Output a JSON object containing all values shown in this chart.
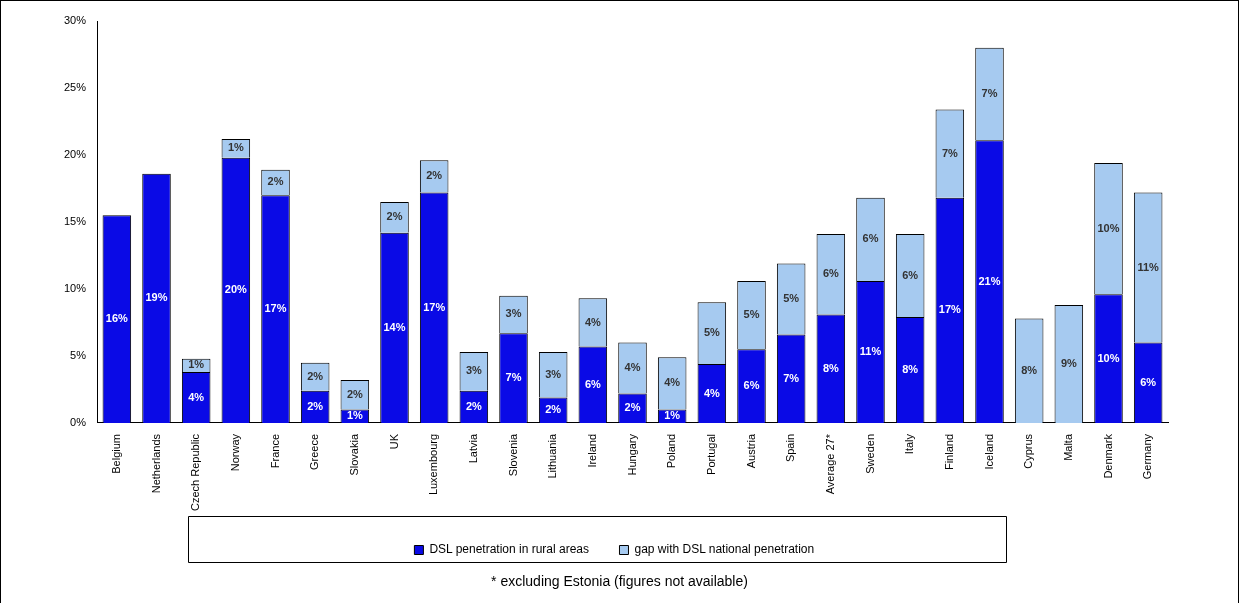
{
  "chart_data": {
    "type": "bar",
    "stacked": true,
    "categories": [
      "Belgium",
      "Netherlands",
      "Czech Republic",
      "Norway",
      "France",
      "Greece",
      "Slovakia",
      "UK",
      "Luxembourg",
      "Latvia",
      "Slovenia",
      "Lithuania",
      "Ireland",
      "Hungary",
      "Poland",
      "Portugal",
      "Austria",
      "Spain",
      "Average 27*",
      "Sweden",
      "Italy",
      "Finland",
      "Iceland",
      "Cyprus",
      "Malta",
      "Denmark",
      "Germany"
    ],
    "series": [
      {
        "name": "DSL penetration in rural areas",
        "color": "#0a0ae6",
        "values": [
          15.5,
          18.6,
          3.8,
          19.8,
          17.0,
          2.4,
          1.0,
          14.2,
          17.2,
          2.4,
          6.7,
          1.9,
          5.7,
          2.2,
          1.0,
          4.4,
          5.5,
          6.6,
          8.1,
          10.6,
          7.9,
          16.8,
          21.1,
          null,
          null,
          9.6,
          6.0
        ],
        "value_labels": [
          "16%",
          "19%",
          "4%",
          "20%",
          "17%",
          "2%",
          "1%",
          "14%",
          "17%",
          "2%",
          "7%",
          "2%",
          "6%",
          "2%",
          "1%",
          "4%",
          "6%",
          "7%",
          "8%",
          "11%",
          "8%",
          "17%",
          "21%",
          null,
          null,
          "10%",
          "6%"
        ]
      },
      {
        "name": "gap with DSL national penetration",
        "color": "#a6caf0",
        "values": [
          null,
          null,
          1.0,
          1.4,
          1.9,
          2.1,
          2.2,
          2.3,
          2.4,
          2.9,
          2.8,
          3.4,
          3.6,
          3.8,
          3.9,
          4.6,
          5.1,
          5.3,
          6.0,
          6.2,
          6.2,
          6.6,
          6.9,
          7.8,
          8.8,
          9.8,
          11.2
        ],
        "value_labels": [
          null,
          null,
          "1%",
          "1%",
          "2%",
          "2%",
          "2%",
          "2%",
          "2%",
          "3%",
          "3%",
          "3%",
          "4%",
          "4%",
          "4%",
          "5%",
          "5%",
          "5%",
          "6%",
          "6%",
          "6%",
          "7%",
          "7%",
          "8%",
          "9%",
          "10%",
          "11%"
        ]
      }
    ],
    "ylim": [
      0,
      30
    ],
    "yticks": [
      {
        "value": 0,
        "label": "0%"
      },
      {
        "value": 5,
        "label": "5%"
      },
      {
        "value": 10,
        "label": "10%"
      },
      {
        "value": 15,
        "label": "15%"
      },
      {
        "value": 20,
        "label": "20%"
      },
      {
        "value": 25,
        "label": "25%"
      },
      {
        "value": 30,
        "label": "30%"
      }
    ],
    "grid": false,
    "legend": "bottom",
    "annotations": [
      "* excluding Estonia (figures not available)"
    ]
  }
}
